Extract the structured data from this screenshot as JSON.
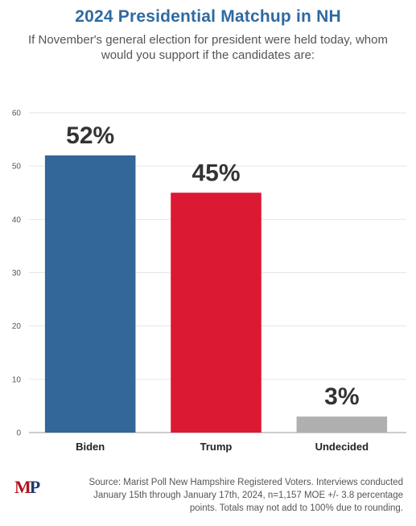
{
  "title": "2024 Presidential Matchup in NH",
  "subtitle": "If November's general election for president were held today, whom would you support if the candidates are:",
  "source": "Source: Marist Poll New Hampshire Registered Voters. Interviews conducted January 15th through January 17th, 2024, n=1,157 MOE +/- 3.8 percentage points. Totals may not add to 100% due to rounding.",
  "logo": {
    "text": "MP",
    "m_color": "#b5121b",
    "p_color": "#1f3a6e"
  },
  "chart_data": {
    "type": "bar",
    "title": "2024 Presidential Matchup in NH",
    "categories": [
      "Biden",
      "Trump",
      "Undecided"
    ],
    "values": [
      52,
      45,
      3
    ],
    "data_labels": [
      "52%",
      "45%",
      "3%"
    ],
    "colors": [
      "#336699",
      "#dc1933",
      "#b0b0b0"
    ],
    "ylim": [
      0,
      60
    ],
    "yticks": [
      0,
      10,
      20,
      30,
      40,
      50,
      60
    ],
    "grid": true,
    "legend": "none"
  }
}
